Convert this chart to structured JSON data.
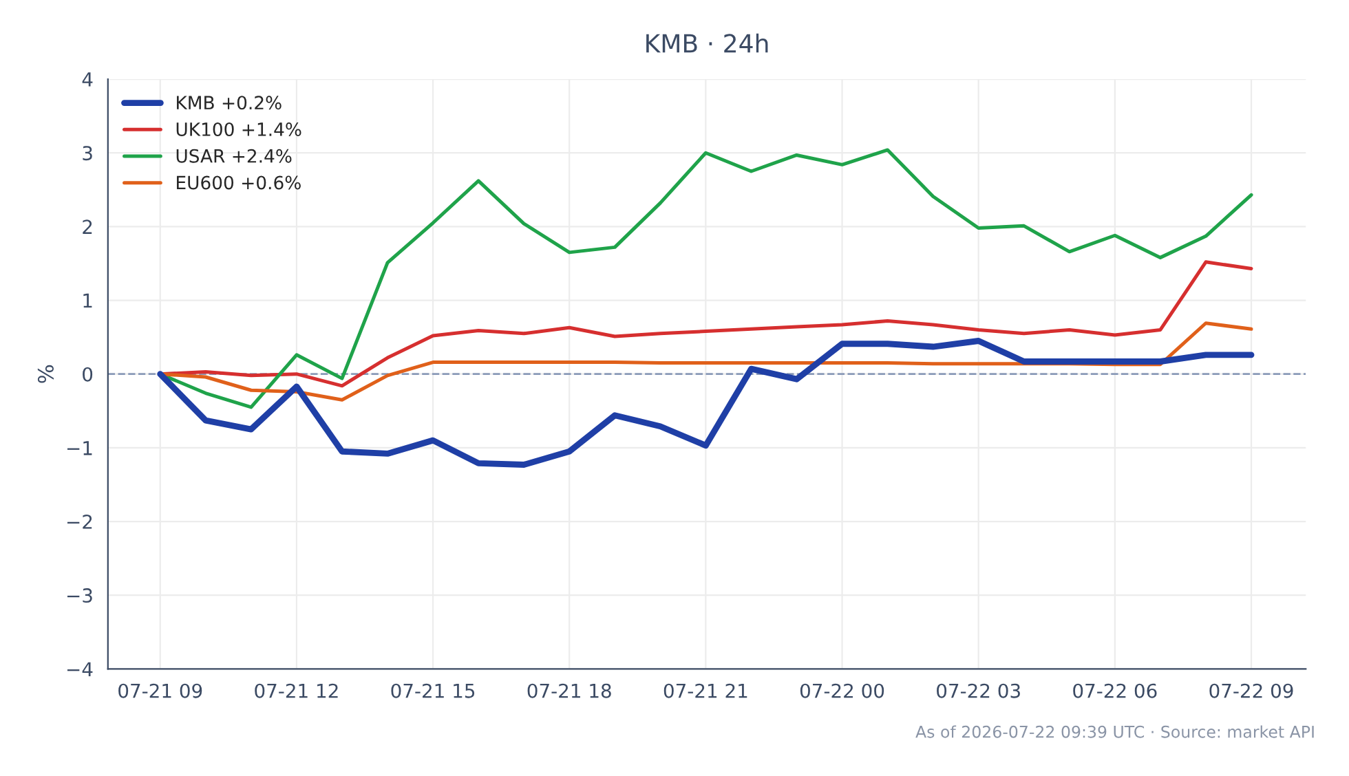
{
  "chart_data": {
    "type": "line",
    "title": "KMB · 24h",
    "ylabel": "%",
    "x": [
      "2026-07-21T09:00",
      "2026-07-21T10:00",
      "2026-07-21T11:00",
      "2026-07-21T12:00",
      "2026-07-21T13:00",
      "2026-07-21T14:00",
      "2026-07-21T15:00",
      "2026-07-21T16:00",
      "2026-07-21T17:00",
      "2026-07-21T18:00",
      "2026-07-21T19:00",
      "2026-07-21T20:00",
      "2026-07-21T21:00",
      "2026-07-21T22:00",
      "2026-07-21T23:00",
      "2026-07-22T00:00",
      "2026-07-22T01:00",
      "2026-07-22T02:00",
      "2026-07-22T03:00",
      "2026-07-22T04:00",
      "2026-07-22T05:00",
      "2026-07-22T06:00",
      "2026-07-22T07:00",
      "2026-07-22T08:00",
      "2026-07-22T09:00"
    ],
    "series": [
      {
        "name": "KMB +0.2%",
        "color": "#1f3fa6",
        "values": [
          0,
          -0.63,
          -0.75,
          -0.17,
          -1.05,
          -1.08,
          -0.9,
          -1.21,
          -1.23,
          -1.05,
          -0.56,
          -0.71,
          -0.97,
          0.07,
          -0.07,
          0.41,
          0.41,
          0.37,
          0.45,
          0.17,
          0.17,
          0.17,
          0.17,
          0.26,
          0.26
        ]
      },
      {
        "name": "UK100 +1.4%",
        "color": "#d62f2f",
        "values": [
          0,
          0.03,
          -0.02,
          0,
          -0.16,
          0.22,
          0.52,
          0.59,
          0.55,
          0.63,
          0.51,
          0.55,
          0.58,
          0.61,
          0.64,
          0.67,
          0.72,
          0.67,
          0.6,
          0.55,
          0.6,
          0.53,
          0.6,
          1.52,
          1.43
        ]
      },
      {
        "name": "USAR +2.4%",
        "color": "#1fa34a",
        "values": [
          0,
          -0.26,
          -0.45,
          0.26,
          -0.06,
          1.51,
          2.05,
          2.62,
          2.04,
          1.65,
          1.72,
          2.32,
          3.0,
          2.75,
          2.97,
          2.84,
          3.04,
          2.41,
          1.98,
          2.01,
          1.66,
          1.88,
          1.58,
          1.87,
          2.43
        ]
      },
      {
        "name": "EU600 +0.6%",
        "color": "#e0601a",
        "values": [
          0,
          -0.04,
          -0.22,
          -0.24,
          -0.35,
          -0.02,
          0.16,
          0.16,
          0.16,
          0.16,
          0.16,
          0.15,
          0.15,
          0.15,
          0.15,
          0.15,
          0.15,
          0.14,
          0.14,
          0.14,
          0.14,
          0.13,
          0.13,
          0.69,
          0.61
        ]
      }
    ],
    "xlim": [
      "2026-07-21T07:51",
      "2026-07-22T10:12"
    ],
    "xticks": [
      {
        "value": "2026-07-21T09:00",
        "label": "07-21 09"
      },
      {
        "value": "2026-07-21T12:00",
        "label": "07-21 12"
      },
      {
        "value": "2026-07-21T15:00",
        "label": "07-21 15"
      },
      {
        "value": "2026-07-21T18:00",
        "label": "07-21 18"
      },
      {
        "value": "2026-07-21T21:00",
        "label": "07-21 21"
      },
      {
        "value": "2026-07-22T00:00",
        "label": "07-22 00"
      },
      {
        "value": "2026-07-22T03:00",
        "label": "07-22 03"
      },
      {
        "value": "2026-07-22T06:00",
        "label": "07-22 06"
      },
      {
        "value": "2026-07-22T09:00",
        "label": "07-22 09"
      }
    ],
    "ylim": [
      -4,
      4
    ],
    "yticks": [
      {
        "value": -4,
        "label": "−4"
      },
      {
        "value": -3,
        "label": "−3"
      },
      {
        "value": -2,
        "label": "−2"
      },
      {
        "value": -1,
        "label": "−1"
      },
      0,
      1,
      2,
      3,
      4
    ],
    "ref_lines": [
      {
        "axis": "y",
        "value": 0,
        "color": "#8a9ab8",
        "line_style": "dashed"
      }
    ],
    "grid": true,
    "legend": "top left",
    "annotations": [
      "As of 2026-07-22 09:39 UTC · Source: market API"
    ]
  }
}
